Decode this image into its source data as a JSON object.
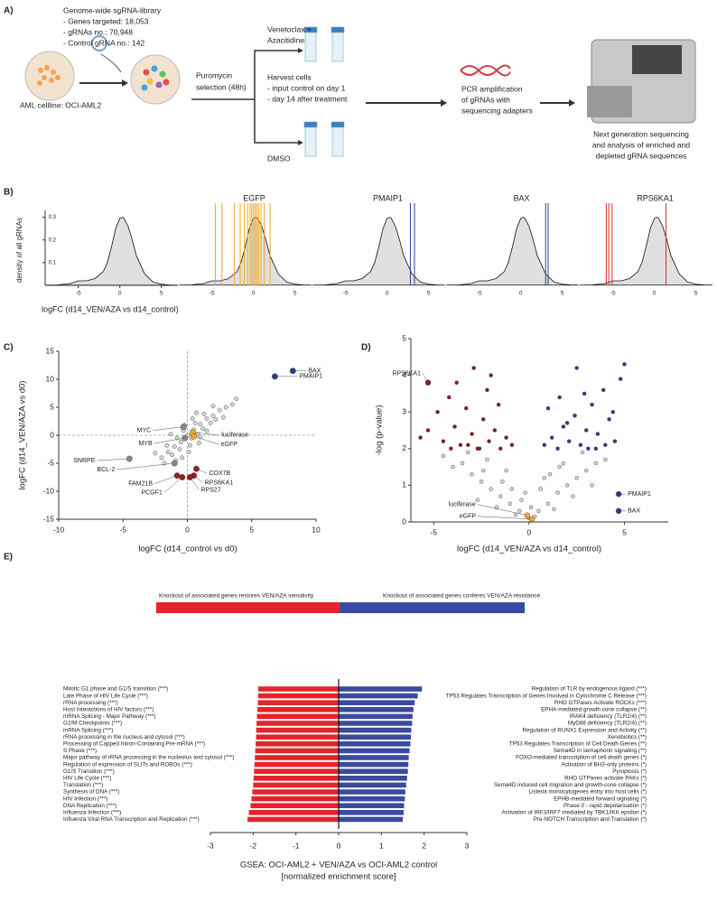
{
  "labels": [
    "A)",
    "B)",
    "C)",
    "D)",
    "E)"
  ],
  "panel_a": {
    "library": [
      "Genome-wide sgRNA-library",
      "- Genes targeted: 18,053",
      "- gRNAs no.: 70,948",
      "- Control gRNA no.: 142"
    ],
    "cell_line": "AML cellline: OCI-AML2",
    "selection": [
      "Puromycin",
      "selection (48h)"
    ],
    "treatment": [
      "Venetoclax +",
      "Azacitidine"
    ],
    "harvest": [
      "Harvest cells",
      "- input control on day 1",
      "- day 14 after treatment"
    ],
    "control": "DMSO",
    "pcr": [
      "PCR amplification",
      "of gRNAs with",
      "sequencing adapters"
    ],
    "sequencing": [
      "Next generation sequencing",
      "and analysis of enriched and",
      "depleted gRNA sequences"
    ]
  },
  "chart_data": [
    {
      "type": "density",
      "ylabel": "density of all gRNAs",
      "xlabel": "logFC (d14_VEN/AZA vs d14_control)",
      "xlim": [
        -9,
        7
      ],
      "ylim": [
        0,
        0.33
      ],
      "xticks": [
        -5,
        0,
        5
      ],
      "yticks": [
        0.1,
        0.2,
        0.3
      ],
      "fill": "#e0e0e0",
      "x": [
        -9,
        -7.5,
        -6,
        -5,
        -4,
        -3,
        -2,
        -1.5,
        -1,
        -0.5,
        0,
        0.3,
        0.5,
        1,
        1.5,
        2,
        3,
        4,
        5,
        6,
        7
      ],
      "density": [
        0.001,
        0.002,
        0.008,
        0.02,
        0.02,
        0.03,
        0.06,
        0.1,
        0.17,
        0.25,
        0.295,
        0.3,
        0.295,
        0.26,
        0.2,
        0.13,
        0.05,
        0.015,
        0.005,
        0.002,
        0.001
      ],
      "panels": [
        {},
        {
          "title": "EGFP",
          "color": "#f5a623",
          "lines": [
            -4.6,
            -3.8,
            -2.3,
            -1.6,
            -1.1,
            -0.7,
            -0.4,
            -0.2,
            0,
            0.2,
            0.4,
            0.6,
            0.9,
            1.3,
            2.0
          ]
        },
        {
          "title": "PMAIP1",
          "color": "#2c3e8f",
          "lines": [
            2.8,
            3.3
          ]
        },
        {
          "title": "BAX",
          "color": "#2c3e8f",
          "lines": [
            3.0,
            3.3
          ]
        },
        {
          "title": "RPS6KA1",
          "color": "#e0282e",
          "lines": [
            -5.8,
            -5.5,
            -5.1,
            1.4
          ]
        }
      ]
    },
    {
      "type": "scatter",
      "xlabel": "logFC (d14_control vs d0)",
      "ylabel": "logFC (d14_VEN/AZA vs d0)",
      "xlim": [
        -10,
        10
      ],
      "ylim": [
        -15,
        15
      ],
      "xticks": [
        -10,
        -5,
        0,
        5,
        10
      ],
      "yticks": [
        -15,
        -10,
        -5,
        0,
        5,
        10,
        15
      ],
      "vlines": [
        0
      ],
      "hlines": [
        0
      ],
      "series": [
        {
          "color": "#d6d6d6",
          "x": [
            -1.5,
            -1,
            -0.5,
            0,
            0.5,
            1,
            1.5,
            2,
            2.5,
            3,
            -2,
            -1.2,
            -0.8,
            -0.3,
            0.3,
            0.8,
            1.2,
            1.8,
            2.2,
            -1.6,
            -0.6,
            0.2,
            0.6,
            1,
            1.5,
            -0.2,
            0.4,
            1.3,
            2.8,
            3.5,
            -2.5,
            -1.8,
            -0.4,
            0.1,
            0.9,
            -1.3,
            -0.9,
            3.8,
            2,
            0.7
          ],
          "values": [
            -3,
            -2,
            -1.2,
            0,
            1,
            2,
            3,
            3.5,
            4.5,
            5,
            -4,
            -3.5,
            -0.5,
            0.8,
            -0.5,
            0.2,
            1.2,
            2.2,
            2.8,
            -1.8,
            -2.5,
            -1.8,
            2.2,
            -0.3,
            0.8,
            1.8,
            3,
            3.8,
            3.2,
            5.5,
            -3.2,
            -5,
            -4,
            -3,
            -1.4,
            0.2,
            -4.5,
            6.5,
            5.2,
            4
          ]
        }
      ],
      "annotations": [
        {
          "label": "BAX",
          "x": 8.2,
          "y": 11.5,
          "color": "#2c3e8f"
        },
        {
          "label": "PMAIP1",
          "x": 6.8,
          "y": 10.5,
          "color": "#2c3e8f"
        },
        {
          "label": "MYC",
          "x": -0.3,
          "y": 1.5,
          "color": "#888888"
        },
        {
          "label": "MYB",
          "x": -0.2,
          "y": -0.5,
          "color": "#888888"
        },
        {
          "label": "luciferase",
          "x": 0.4,
          "y": 0.5,
          "color": "#f5a623"
        },
        {
          "label": "eGFP",
          "x": 0.5,
          "y": -0.2,
          "color": "#f5a623"
        },
        {
          "label": "SNRPE",
          "x": -4.5,
          "y": -4.2,
          "color": "#888888"
        },
        {
          "label": "BCL-2",
          "x": -1,
          "y": -5,
          "color": "#888888"
        },
        {
          "label": "COX7B",
          "x": 0.7,
          "y": -6,
          "color": "#9b1c1c"
        },
        {
          "label": "RPS6KA1",
          "x": 0.5,
          "y": -7.2,
          "color": "#9b1c1c"
        },
        {
          "label": "RPS27",
          "x": 0.2,
          "y": -7.5,
          "color": "#9b1c1c"
        },
        {
          "label": "FAM21B",
          "x": -0.8,
          "y": -7.2,
          "color": "#9b1c1c"
        },
        {
          "label": "PCGF1",
          "x": -0.4,
          "y": -7.5,
          "color": "#9b1c1c"
        }
      ]
    },
    {
      "type": "scatter",
      "xlabel": "logFC (d14_VEN/AZA vs d14_control)",
      "ylabel": "-log (p-value)",
      "xlim": [
        -6.2,
        7.3
      ],
      "ylim": [
        0,
        5
      ],
      "xticks": [
        -5,
        0,
        5
      ],
      "yticks": [
        0,
        1,
        2,
        3,
        4,
        5
      ],
      "series": [
        {
          "color": "#8b1a1a",
          "x": [
            -5.3,
            -4.8,
            -4.5,
            -4.2,
            -3.9,
            -3.6,
            -3.3,
            -3,
            -2.7,
            -2.4,
            -2.1,
            -1.8,
            -1.5,
            -1.2,
            -0.9,
            -3.8,
            -2.9,
            -2.2,
            -4.1,
            -1.6,
            -3.2,
            -2.6,
            -5.7,
            -2
          ],
          "values": [
            2.5,
            3,
            2.2,
            3.4,
            2.6,
            2.1,
            3.1,
            2.4,
            2,
            2.8,
            2.2,
            2.5,
            2,
            2.3,
            2.1,
            3.8,
            4.2,
            3.6,
            2,
            3.2,
            2.1,
            2,
            2.3,
            4
          ]
        },
        {
          "color": "#2c3e8f",
          "x": [
            0.8,
            1.2,
            1.5,
            1.8,
            2.1,
            2.4,
            2.7,
            3,
            3.3,
            3.6,
            3.9,
            4.2,
            4.5,
            4.8,
            1,
            2,
            3.1,
            4,
            2.5,
            1.6,
            3.5,
            4.4,
            5,
            2.9
          ],
          "values": [
            2.1,
            2.3,
            2,
            2.6,
            2.2,
            2.9,
            2.1,
            2.5,
            3.2,
            2.4,
            3.6,
            2.8,
            2.2,
            3.9,
            3.1,
            2.7,
            2,
            2.1,
            4.2,
            3.4,
            2,
            3,
            4.3,
            3.5
          ]
        },
        {
          "color": "#d6d6d6",
          "x": [
            -4.5,
            -4,
            -3.5,
            -3,
            -2.5,
            -2,
            -1.5,
            -1,
            -0.5,
            0,
            0.5,
            1,
            1.5,
            2,
            2.5,
            3,
            3.5,
            4,
            -3.2,
            -2.2,
            -1.2,
            -0.2,
            0.8,
            1.8,
            2.8,
            -2.7,
            -1.7,
            -0.7,
            0.3,
            1.3,
            2.3,
            3.3,
            -1.4,
            -0.4,
            0.6,
            1.6,
            -0.9,
            0.1,
            1.1,
            -2.4
          ],
          "values": [
            1.8,
            1.5,
            1.6,
            1.3,
            1.1,
            0.9,
            0.7,
            0.5,
            0.3,
            0.1,
            0.3,
            0.5,
            0.8,
            1,
            1.2,
            1.4,
            1.6,
            1.7,
            1.9,
            1.7,
            1.4,
            0.8,
            1.2,
            1.6,
            1.9,
            0.6,
            0.4,
            0.2,
            0.15,
            0.35,
            0.7,
            1,
            1.1,
            0.6,
            0.9,
            1.5,
            0.9,
            0.4,
            1.3,
            1.4
          ]
        }
      ],
      "annotations": [
        {
          "label": "RPS6KA1",
          "x": -5.3,
          "y": 3.8,
          "color": "#8b1a1a"
        },
        {
          "label": "PMAIP1",
          "x": 4.7,
          "y": 0.76,
          "color": "#2c3e8f"
        },
        {
          "label": "BAX",
          "x": 4.7,
          "y": 0.3,
          "color": "#2c3e8f"
        },
        {
          "label": "luciferase",
          "x": -0.1,
          "y": 0.18,
          "color": "#f5a623"
        },
        {
          "label": "eGFP",
          "x": 0.15,
          "y": 0.08,
          "color": "#f5a623"
        }
      ]
    },
    {
      "type": "hbar",
      "headers": [
        "Knockout of associated genes restores VEN/AZA sensitivity",
        "Knockout of associated genes conferes VEN/AZA resistance"
      ],
      "xlabel": [
        "GSEA: OCI-AML2 + VEN/AZA vs OCI-AML2 control",
        "[normalized enrichment score]"
      ],
      "xlim": [
        -3,
        3
      ],
      "xticks": [
        -3,
        -2,
        -1,
        0,
        1,
        2,
        3
      ],
      "series": [
        {
          "color": "#e8222a",
          "categories": [
            "Mitotic G1 phase and G1/S transition (***)",
            "Late Phase of HIV Life Cycle (***)",
            "rRNA processing (***)",
            "Host Interactions of HIV factors (***)",
            "mRNA Splicing - Major Pathway (***)",
            "G2/M Checkpoints (***)",
            "mRNA Splicing (***)",
            "rRNA processing in the nucleus and cytosol (***)",
            "Processing of Capped Intron-Containing Pre-mRNA (***)",
            "S Phase (***)",
            "Major pathway of rRNA processing in the nucleolus and cytosol (***)",
            "Regulation of expression of SLITs and ROBOs (***)",
            "G1/S Transition (***)",
            "HIV Life Cycle (***)",
            "Translation (***)",
            "Synthesis of DNA (***)",
            "HIV Infection (***)",
            "DNA Replication (***)",
            "Influenza Infection (***)",
            "Influenza Viral RNA Transcription and Replication (***)"
          ],
          "values": [
            -1.88,
            -1.88,
            -1.89,
            -1.9,
            -1.91,
            -1.92,
            -1.93,
            -1.93,
            -1.94,
            -1.95,
            -1.96,
            -1.97,
            -1.98,
            -1.99,
            -2,
            -2.02,
            -2.04,
            -2.06,
            -2.1,
            -2.13
          ]
        },
        {
          "color": "#3a4a9f",
          "categories": [
            "Regulation of TLR by endogenous ligand (***)",
            "TP53 Regulates Transcription of Genes Involved in Cytochrome C Release (***)",
            "RHO GTPases Activate ROCKs (***)",
            "EPHA-mediated growth cone collapse (**)",
            "IRAK4 deficiency (TLR2/4) (**)",
            "MyD88 deficiency (TLR2/4) (**)",
            "Regulation of RUNX1 Expression and Activity (**)",
            "Xenobiotics (**)",
            "TP53 Regulates Transcription of Cell Death Genes (**)",
            "Sema4D in semaphorin signaling (**)",
            "FOXO-mediated transcription of cell death genes (*)",
            "Activation of BH3-only proteins (*)",
            "Pyroptosis (*)",
            "RHO GTPases activate PAKs (*)",
            "Sema4D induced cell migration and growth-cone collapse (*)",
            "Listeria monocytogenes entry into host cells (*)",
            "EPHB-mediated forward signaling (*)",
            "Phase 0 - rapid depolarisation (*)",
            "Activation of IRF3/IRF7 mediated by TBK1/IKK epsilon (*)",
            "Pre-NOTCH Transcription and Translation (*)"
          ],
          "values": [
            1.95,
            1.85,
            1.78,
            1.75,
            1.73,
            1.72,
            1.7,
            1.69,
            1.68,
            1.66,
            1.64,
            1.63,
            1.62,
            1.6,
            1.58,
            1.56,
            1.55,
            1.53,
            1.52,
            1.5
          ]
        }
      ]
    }
  ]
}
